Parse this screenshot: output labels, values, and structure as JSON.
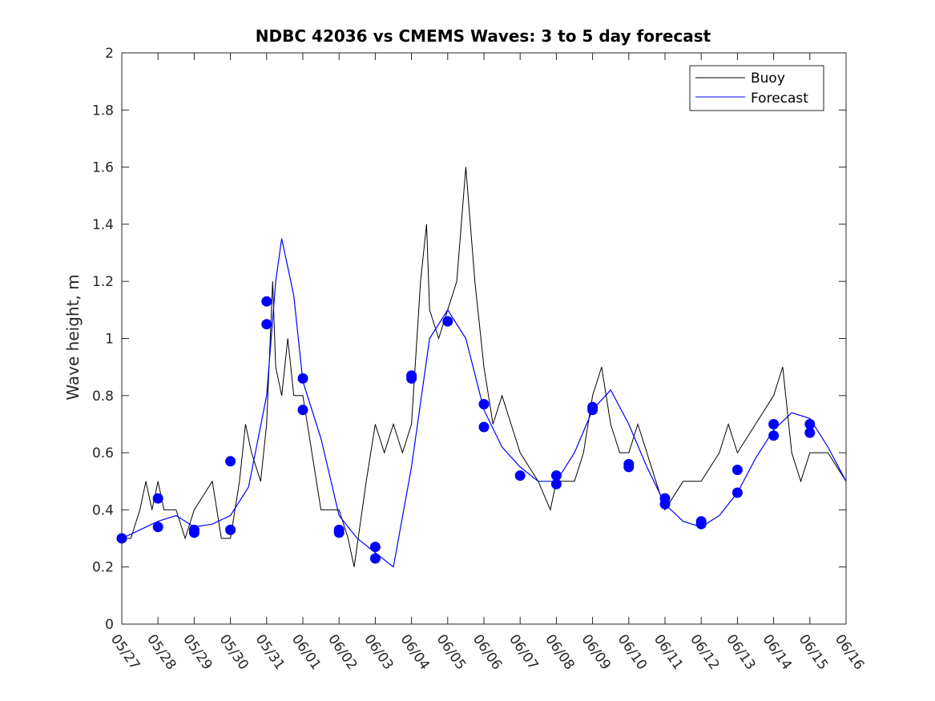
{
  "chart_data": {
    "type": "line",
    "title": "NDBC 42036 vs CMEMS Waves: 3 to 5 day forecast",
    "xlabel": "",
    "ylabel": "Wave height, m",
    "xlim": [
      "05/27",
      "06/16"
    ],
    "ylim": [
      0,
      2
    ],
    "yticks": [
      "0",
      "0.2",
      "0.4",
      "0.6",
      "0.8",
      "1",
      "1.2",
      "1.4",
      "1.6",
      "1.8",
      "2"
    ],
    "xticks": [
      "05/27",
      "05/28",
      "05/29",
      "05/30",
      "05/31",
      "06/01",
      "06/02",
      "06/03",
      "06/04",
      "06/05",
      "06/06",
      "06/07",
      "06/08",
      "06/09",
      "06/10",
      "06/11",
      "06/12",
      "06/13",
      "06/14",
      "06/15",
      "06/16"
    ],
    "grid": false,
    "legend": {
      "placement": "top-right",
      "entries": [
        {
          "name": "Buoy",
          "color": "#000000"
        },
        {
          "name": "Forecast",
          "color": "#0000ff"
        }
      ]
    },
    "series": [
      {
        "name": "Buoy",
        "color": "#000000",
        "points": [
          [
            "05/27",
            0.3
          ],
          [
            "05/27 06:00",
            0.3
          ],
          [
            "05/27 12:00",
            0.4
          ],
          [
            "05/27 16:00",
            0.5
          ],
          [
            "05/27 20:00",
            0.4
          ],
          [
            "05/28",
            0.5
          ],
          [
            "05/28 04:00",
            0.4
          ],
          [
            "05/28 12:00",
            0.4
          ],
          [
            "05/28 18:00",
            0.3
          ],
          [
            "05/29",
            0.4
          ],
          [
            "05/29 12:00",
            0.5
          ],
          [
            "05/29 18:00",
            0.3
          ],
          [
            "05/30",
            0.3
          ],
          [
            "05/30 06:00",
            0.5
          ],
          [
            "05/30 10:00",
            0.7
          ],
          [
            "05/30 14:00",
            0.6
          ],
          [
            "05/30 20:00",
            0.5
          ],
          [
            "05/31",
            0.7
          ],
          [
            "05/31 04:00",
            1.2
          ],
          [
            "05/31 06:00",
            0.9
          ],
          [
            "05/31 10:00",
            0.8
          ],
          [
            "05/31 14:00",
            1.0
          ],
          [
            "05/31 18:00",
            0.8
          ],
          [
            "06/01",
            0.8
          ],
          [
            "06/01 06:00",
            0.6
          ],
          [
            "06/01 12:00",
            0.4
          ],
          [
            "06/02",
            0.4
          ],
          [
            "06/02 06:00",
            0.3
          ],
          [
            "06/02 10:00",
            0.2
          ],
          [
            "06/02 18:00",
            0.5
          ],
          [
            "06/03",
            0.7
          ],
          [
            "06/03 06:00",
            0.6
          ],
          [
            "06/03 12:00",
            0.7
          ],
          [
            "06/03 18:00",
            0.6
          ],
          [
            "06/04",
            0.7
          ],
          [
            "06/04 06:00",
            1.2
          ],
          [
            "06/04 10:00",
            1.4
          ],
          [
            "06/04 12:00",
            1.1
          ],
          [
            "06/04 18:00",
            1.0
          ],
          [
            "06/05",
            1.1
          ],
          [
            "06/05 06:00",
            1.2
          ],
          [
            "06/05 12:00",
            1.6
          ],
          [
            "06/05 18:00",
            1.2
          ],
          [
            "06/06",
            0.9
          ],
          [
            "06/06 06:00",
            0.7
          ],
          [
            "06/06 12:00",
            0.8
          ],
          [
            "06/06 18:00",
            0.7
          ],
          [
            "06/07",
            0.6
          ],
          [
            "06/07 12:00",
            0.5
          ],
          [
            "06/07 20:00",
            0.4
          ],
          [
            "06/08",
            0.5
          ],
          [
            "06/08 12:00",
            0.5
          ],
          [
            "06/08 18:00",
            0.6
          ],
          [
            "06/09",
            0.8
          ],
          [
            "06/09 06:00",
            0.9
          ],
          [
            "06/09 12:00",
            0.7
          ],
          [
            "06/09 18:00",
            0.6
          ],
          [
            "06/10",
            0.6
          ],
          [
            "06/10 06:00",
            0.7
          ],
          [
            "06/10 12:00",
            0.6
          ],
          [
            "06/10 18:00",
            0.5
          ],
          [
            "06/11",
            0.4
          ],
          [
            "06/11 12:00",
            0.5
          ],
          [
            "06/12",
            0.5
          ],
          [
            "06/12 12:00",
            0.6
          ],
          [
            "06/12 18:00",
            0.7
          ],
          [
            "06/13",
            0.6
          ],
          [
            "06/13 12:00",
            0.7
          ],
          [
            "06/14",
            0.8
          ],
          [
            "06/14 06:00",
            0.9
          ],
          [
            "06/14 12:00",
            0.6
          ],
          [
            "06/14 18:00",
            0.5
          ],
          [
            "06/15",
            0.6
          ],
          [
            "06/15 12:00",
            0.6
          ],
          [
            "06/16",
            0.5
          ]
        ]
      },
      {
        "name": "Forecast",
        "color": "#0000ff",
        "points": [
          [
            "05/27",
            0.3
          ],
          [
            "05/27 12:00",
            0.33
          ],
          [
            "05/28",
            0.36
          ],
          [
            "05/28 12:00",
            0.38
          ],
          [
            "05/29",
            0.34
          ],
          [
            "05/29 12:00",
            0.35
          ],
          [
            "05/30",
            0.38
          ],
          [
            "05/30 12:00",
            0.48
          ],
          [
            "05/31",
            0.8
          ],
          [
            "05/31 06:00",
            1.2
          ],
          [
            "05/31 10:00",
            1.35
          ],
          [
            "05/31 18:00",
            1.15
          ],
          [
            "06/01",
            0.85
          ],
          [
            "06/01 12:00",
            0.65
          ],
          [
            "06/02",
            0.38
          ],
          [
            "06/02 12:00",
            0.3
          ],
          [
            "06/03",
            0.25
          ],
          [
            "06/03 12:00",
            0.2
          ],
          [
            "06/04",
            0.55
          ],
          [
            "06/04 12:00",
            1.0
          ],
          [
            "06/05",
            1.1
          ],
          [
            "06/05 12:00",
            1.0
          ],
          [
            "06/06",
            0.75
          ],
          [
            "06/06 12:00",
            0.62
          ],
          [
            "06/07",
            0.55
          ],
          [
            "06/07 12:00",
            0.5
          ],
          [
            "06/08",
            0.5
          ],
          [
            "06/08 12:00",
            0.6
          ],
          [
            "06/09",
            0.75
          ],
          [
            "06/09 12:00",
            0.82
          ],
          [
            "06/10",
            0.7
          ],
          [
            "06/10 12:00",
            0.55
          ],
          [
            "06/11",
            0.42
          ],
          [
            "06/11 12:00",
            0.36
          ],
          [
            "06/12",
            0.34
          ],
          [
            "06/12 12:00",
            0.38
          ],
          [
            "06/13",
            0.46
          ],
          [
            "06/13 12:00",
            0.58
          ],
          [
            "06/14",
            0.68
          ],
          [
            "06/14 12:00",
            0.74
          ],
          [
            "06/15",
            0.72
          ],
          [
            "06/15 12:00",
            0.62
          ],
          [
            "06/16",
            0.5
          ]
        ]
      }
    ],
    "forecast_markers": [
      [
        "05/27",
        0.3
      ],
      [
        "05/28",
        0.44
      ],
      [
        "05/28",
        0.34
      ],
      [
        "05/29",
        0.33
      ],
      [
        "05/29",
        0.32
      ],
      [
        "05/30",
        0.57
      ],
      [
        "05/30",
        0.33
      ],
      [
        "05/31",
        1.13
      ],
      [
        "05/31",
        1.05
      ],
      [
        "06/01",
        0.86
      ],
      [
        "06/01",
        0.75
      ],
      [
        "06/02",
        0.33
      ],
      [
        "06/02",
        0.32
      ],
      [
        "06/03",
        0.27
      ],
      [
        "06/03",
        0.23
      ],
      [
        "06/04",
        0.87
      ],
      [
        "06/04",
        0.86
      ],
      [
        "06/05",
        1.06
      ],
      [
        "06/06",
        0.77
      ],
      [
        "06/06",
        0.69
      ],
      [
        "06/07",
        0.52
      ],
      [
        "06/08",
        0.52
      ],
      [
        "06/08",
        0.49
      ],
      [
        "06/09",
        0.76
      ],
      [
        "06/09",
        0.75
      ],
      [
        "06/10",
        0.56
      ],
      [
        "06/10",
        0.55
      ],
      [
        "06/11",
        0.44
      ],
      [
        "06/11",
        0.42
      ],
      [
        "06/12",
        0.36
      ],
      [
        "06/12",
        0.35
      ],
      [
        "06/13",
        0.54
      ],
      [
        "06/13",
        0.46
      ],
      [
        "06/14",
        0.7
      ],
      [
        "06/14",
        0.66
      ],
      [
        "06/15",
        0.7
      ],
      [
        "06/15",
        0.67
      ]
    ]
  }
}
